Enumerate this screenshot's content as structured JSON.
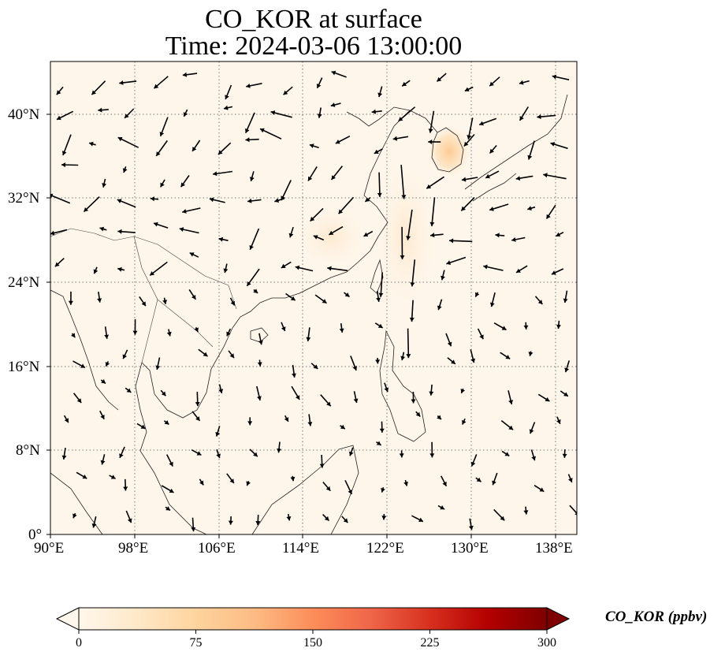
{
  "title": {
    "line1": "CO_KOR at surface",
    "line2": "Time: 2024-03-06 13:00:00"
  },
  "map": {
    "lon_range": [
      90,
      140
    ],
    "lat_range": [
      0,
      45
    ],
    "x_ticks": [
      "90°E",
      "98°E",
      "106°E",
      "114°E",
      "122°E",
      "130°E",
      "138°E"
    ],
    "y_ticks": [
      "0°",
      "8°N",
      "16°N",
      "24°N",
      "32°N",
      "40°N"
    ],
    "gridlines": true,
    "wind_vectors": true
  },
  "colorbar": {
    "label": "CO_KOR (ppbv)",
    "ticks": [
      "0",
      "75",
      "150",
      "225",
      "300"
    ],
    "min": 0,
    "max": 300,
    "colormap": "OrRd",
    "extend": "both",
    "colors": [
      "#fff7ec",
      "#fee8c8",
      "#fdd49e",
      "#fdbb84",
      "#fc8d59",
      "#ef6548",
      "#d7301f",
      "#b30000",
      "#7f0000"
    ]
  },
  "plumes": [
    {
      "region": "Korean Peninsula",
      "level": 0.15
    },
    {
      "region": "East China Sea",
      "level": 0.05
    },
    {
      "region": "Southeast China",
      "level": 0.04
    }
  ]
}
